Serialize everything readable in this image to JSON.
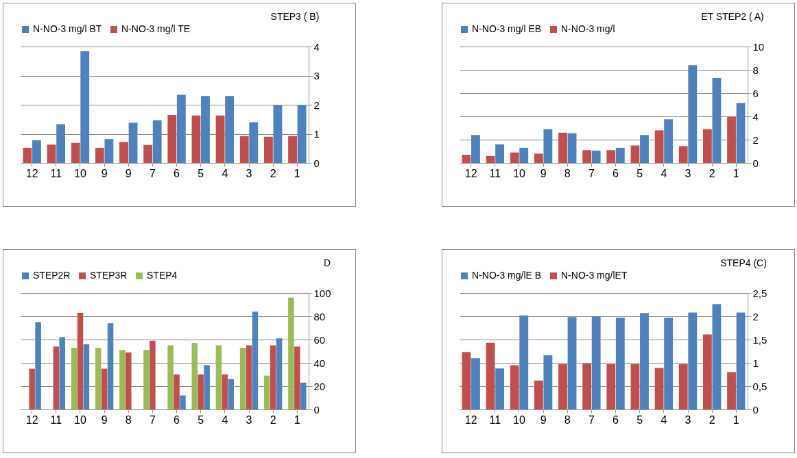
{
  "chart_data": [
    {
      "type": "bar",
      "title": "STEP3 ( B)",
      "categories": [
        "12",
        "11",
        "10",
        "9",
        "9",
        "7",
        "6",
        "5",
        "4",
        "3",
        "2",
        "1"
      ],
      "legend": "top",
      "grid": "y",
      "ylim": [
        0,
        4
      ],
      "yticks": [
        0,
        1,
        2,
        3,
        4
      ],
      "series": [
        {
          "name": "N-NO-3 mg/l TE",
          "color": "#c0504d",
          "values": [
            0.52,
            0.63,
            0.69,
            0.52,
            0.72,
            0.62,
            1.65,
            1.63,
            1.63,
            0.92,
            0.9,
            0.92
          ]
        },
        {
          "name": "N-NO-3 mg/l BT",
          "color": "#4f81bd",
          "values": [
            0.78,
            1.33,
            3.84,
            0.82,
            1.38,
            1.47,
            2.34,
            2.3,
            2.3,
            1.4,
            1.98,
            1.98
          ]
        }
      ]
    },
    {
      "type": "bar",
      "title": "ET  STEP2 ( A)",
      "categories": [
        "12",
        "11",
        "10",
        "9",
        "8",
        "7",
        "6",
        "5",
        "4",
        "3",
        "2",
        "1"
      ],
      "legend": "top",
      "grid": "y",
      "ylim": [
        0,
        10
      ],
      "yticks": [
        0,
        2,
        4,
        6,
        8,
        10
      ],
      "series": [
        {
          "name": "N-NO-3 mg/l",
          "color": "#c0504d",
          "values": [
            0.7,
            0.6,
            0.9,
            0.8,
            2.6,
            1.1,
            1.1,
            1.5,
            2.8,
            1.45,
            2.9,
            3.95
          ]
        },
        {
          "name": "N-NO-3 mg/l EB",
          "color": "#4f81bd",
          "values": [
            2.4,
            1.6,
            1.3,
            2.9,
            2.55,
            1.05,
            1.3,
            2.4,
            3.75,
            8.4,
            7.3,
            5.15
          ]
        }
      ]
    },
    {
      "type": "bar",
      "title": "D",
      "categories": [
        "12",
        "11",
        "10",
        "9",
        "8",
        "7",
        "6",
        "5",
        "4",
        "3",
        "2",
        "1"
      ],
      "legend": "top",
      "grid": "y",
      "ylim": [
        0,
        100
      ],
      "yticks": [
        0,
        20,
        40,
        60,
        80,
        100
      ],
      "series": [
        {
          "name": "STEP4",
          "color": "#9bbb59",
          "values": [
            null,
            null,
            53,
            53,
            51,
            51,
            55,
            57,
            55,
            53,
            29,
            96
          ]
        },
        {
          "name": "STEP3R",
          "color": "#c0504d",
          "values": [
            35,
            54,
            83,
            35,
            49,
            59,
            30,
            30,
            30,
            55,
            55,
            54
          ]
        },
        {
          "name": "STEP2R",
          "color": "#4f81bd",
          "values": [
            75,
            62,
            56,
            74,
            null,
            null,
            12,
            38,
            26,
            84,
            61,
            23
          ]
        }
      ]
    },
    {
      "type": "bar",
      "title": "STEP4      (C)",
      "categories": [
        "12",
        "11",
        "10",
        "9",
        "8",
        "7",
        "6",
        "5",
        "4",
        "3",
        "2",
        "1"
      ],
      "legend": "top",
      "grid": "y",
      "ylim": [
        0,
        2.5
      ],
      "yticks": [
        0,
        {
          "value": 0.5,
          "label": "0,5"
        },
        1,
        {
          "value": 1.5,
          "label": "1,5"
        },
        2,
        {
          "value": 2.5,
          "label": "2,5"
        }
      ],
      "series": [
        {
          "name": "N-NO-3 mg/lET",
          "color": "#c0504d",
          "values": [
            1.23,
            1.43,
            0.95,
            0.62,
            0.97,
            0.98,
            0.97,
            0.97,
            0.89,
            0.97,
            1.61,
            0.8
          ]
        },
        {
          "name": "N-NO-3 mg/lE B",
          "color": "#4f81bd",
          "values": [
            1.1,
            0.88,
            2.02,
            1.16,
            1.98,
            2.0,
            1.97,
            2.07,
            1.97,
            2.08,
            2.26,
            2.08
          ]
        }
      ]
    }
  ]
}
